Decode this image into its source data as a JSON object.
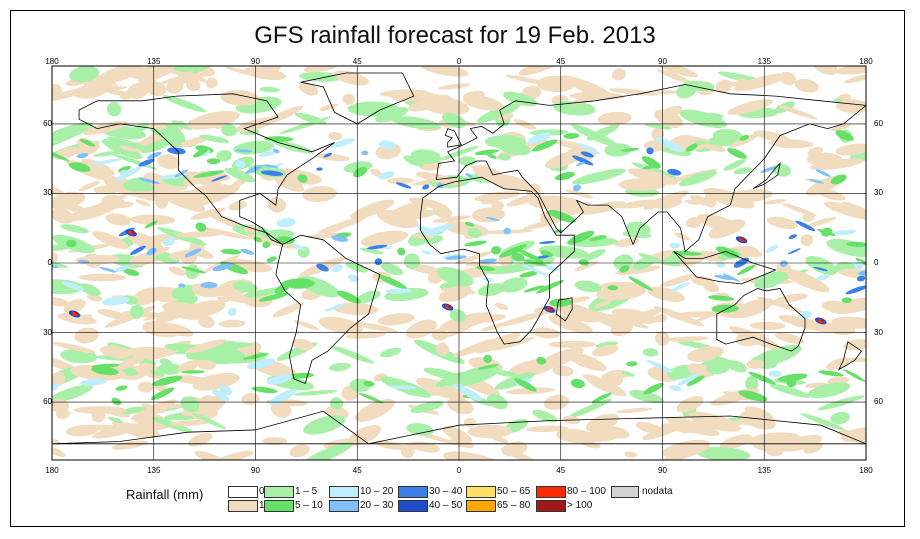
{
  "title": "GFS rainfall forecast for 19 Feb. 2013",
  "lon_ticks": [
    "180",
    "135",
    "90",
    "45",
    "0",
    "45",
    "90",
    "135",
    "180"
  ],
  "lat_ticks": [
    "60",
    "30",
    "0",
    "30",
    "60"
  ],
  "legend": {
    "title": "Rainfall (mm)",
    "items": [
      {
        "label": "0",
        "color": "#ffffff"
      },
      {
        "label": "1",
        "color": "#f2dcc0"
      },
      {
        "label": "1 – 5",
        "color": "#a8f0a8"
      },
      {
        "label": "5 – 10",
        "color": "#66e066"
      },
      {
        "label": "10 – 20",
        "color": "#bfeeff"
      },
      {
        "label": "20 – 30",
        "color": "#7fc0ff"
      },
      {
        "label": "30 – 40",
        "color": "#3a80e8"
      },
      {
        "label": "40 – 50",
        "color": "#1f4ccc"
      },
      {
        "label": "50 – 65",
        "color": "#ffe066"
      },
      {
        "label": "65 – 80",
        "color": "#ffa500"
      },
      {
        "label": "80 – 100",
        "color": "#ff2a00"
      },
      {
        "label": "> 100",
        "color": "#a01818"
      },
      {
        "label": "nodata",
        "color": "#d3d3d3"
      }
    ]
  },
  "colors": {
    "land_outline": "#000000",
    "grid": "#000000"
  }
}
